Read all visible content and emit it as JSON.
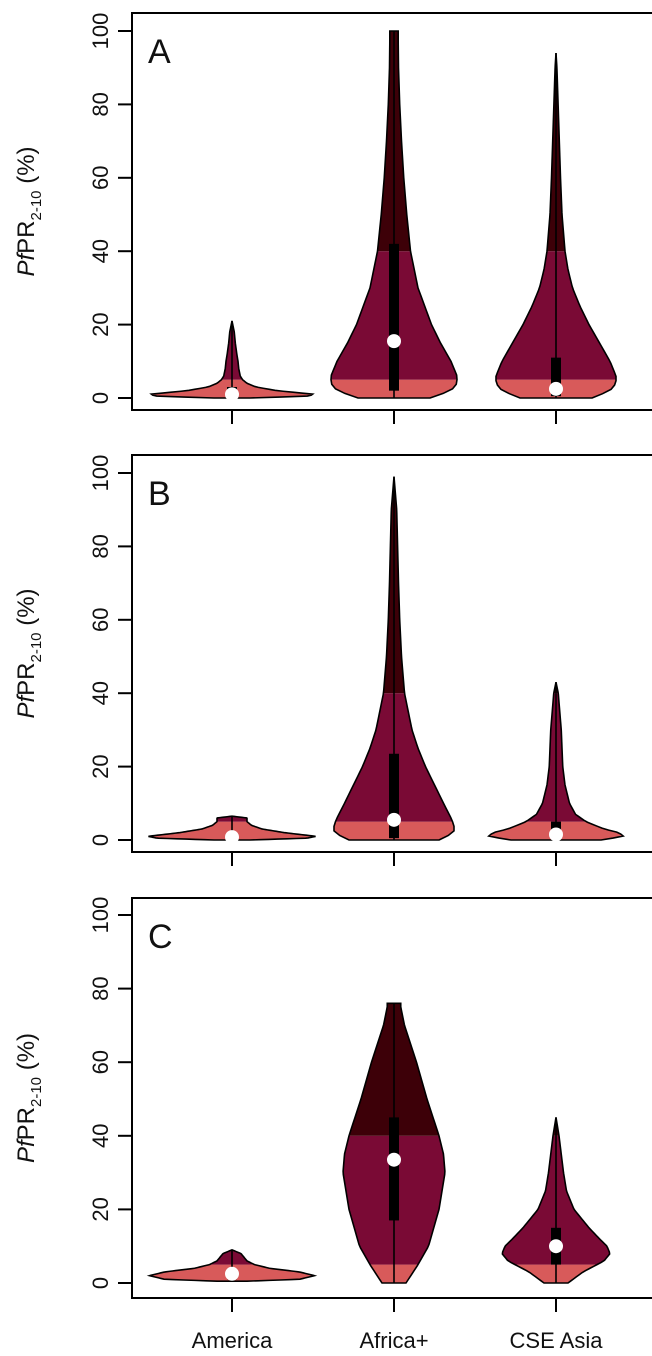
{
  "chart_data": {
    "type": "violin",
    "shared": {
      "categories": [
        "America",
        "Africa+",
        "CSE Asia"
      ],
      "ylabel_prefix": "Pf",
      "ylabel_main": "PR",
      "ylabel_sub": "2-10",
      "ylabel_suffix": " (%)",
      "ylim": [
        0,
        100
      ],
      "yticks": [
        "0",
        "20",
        "40",
        "60",
        "80",
        "100"
      ],
      "band_thresholds": [
        5,
        40
      ],
      "colors": {
        "low_band": "#d85a5a",
        "mid_band": "#7a0a35",
        "high_band": "#3d0008",
        "outline": "#000000",
        "median_dot": "#ffffff"
      }
    },
    "panels": [
      {
        "letter": "A",
        "violins": [
          {
            "category": "America",
            "min": 0,
            "max": 21,
            "q1": 0.3,
            "median": 1,
            "q3": 3,
            "density": [
              [
                0,
                0.12
              ],
              [
                0.5,
                0.5
              ],
              [
                1,
                0.55
              ],
              [
                2,
                0.3
              ],
              [
                3,
                0.16
              ],
              [
                4,
                0.1
              ],
              [
                5,
                0.07
              ],
              [
                6,
                0.055
              ],
              [
                8,
                0.045
              ],
              [
                10,
                0.04
              ],
              [
                12,
                0.032
              ],
              [
                15,
                0.022
              ],
              [
                18,
                0.015
              ],
              [
                21,
                0
              ]
            ]
          },
          {
            "category": "Africa+",
            "min": 0,
            "max": 100,
            "q1": 2,
            "median": 15.5,
            "q3": 42,
            "density": [
              [
                0,
                0.24
              ],
              [
                2,
                0.38
              ],
              [
                4,
                0.42
              ],
              [
                6,
                0.42
              ],
              [
                10,
                0.38
              ],
              [
                15,
                0.31
              ],
              [
                20,
                0.25
              ],
              [
                30,
                0.16
              ],
              [
                40,
                0.11
              ],
              [
                50,
                0.085
              ],
              [
                60,
                0.065
              ],
              [
                70,
                0.05
              ],
              [
                80,
                0.038
              ],
              [
                90,
                0.03
              ],
              [
                97,
                0.028
              ],
              [
                100,
                0.028
              ]
            ]
          },
          {
            "category": "CSE Asia",
            "min": 0,
            "max": 94,
            "q1": 0.5,
            "median": 2.5,
            "q3": 11,
            "density": [
              [
                0,
                0.24
              ],
              [
                2,
                0.36
              ],
              [
                4,
                0.4
              ],
              [
                6,
                0.4
              ],
              [
                10,
                0.36
              ],
              [
                15,
                0.29
              ],
              [
                20,
                0.22
              ],
              [
                25,
                0.16
              ],
              [
                30,
                0.11
              ],
              [
                35,
                0.08
              ],
              [
                40,
                0.06
              ],
              [
                50,
                0.04
              ],
              [
                60,
                0.03
              ],
              [
                70,
                0.022
              ],
              [
                80,
                0.014
              ],
              [
                90,
                0.006
              ],
              [
                94,
                0
              ]
            ]
          }
        ]
      },
      {
        "letter": "B",
        "violins": [
          {
            "category": "America",
            "min": 0,
            "max": 6.5,
            "q1": 0.2,
            "median": 0.8,
            "q3": 2,
            "density": [
              [
                0,
                0.12
              ],
              [
                0.5,
                0.5
              ],
              [
                1,
                0.56
              ],
              [
                2,
                0.35
              ],
              [
                3,
                0.2
              ],
              [
                4,
                0.13
              ],
              [
                5,
                0.1
              ],
              [
                6,
                0.1
              ],
              [
                6.5,
                0
              ]
            ]
          },
          {
            "category": "Africa+",
            "min": 0,
            "max": 99,
            "q1": 0.5,
            "median": 5.5,
            "q3": 23.5,
            "density": [
              [
                0,
                0.3
              ],
              [
                2,
                0.4
              ],
              [
                4,
                0.4
              ],
              [
                6,
                0.38
              ],
              [
                10,
                0.33
              ],
              [
                15,
                0.27
              ],
              [
                20,
                0.21
              ],
              [
                25,
                0.16
              ],
              [
                30,
                0.12
              ],
              [
                40,
                0.07
              ],
              [
                50,
                0.05
              ],
              [
                60,
                0.038
              ],
              [
                70,
                0.03
              ],
              [
                80,
                0.024
              ],
              [
                90,
                0.018
              ],
              [
                99,
                0
              ]
            ]
          },
          {
            "category": "CSE Asia",
            "min": 0,
            "max": 43,
            "q1": 0.5,
            "median": 1.5,
            "q3": 5,
            "density": [
              [
                0,
                0.3
              ],
              [
                1,
                0.45
              ],
              [
                2,
                0.42
              ],
              [
                3,
                0.32
              ],
              [
                5,
                0.2
              ],
              [
                7,
                0.13
              ],
              [
                10,
                0.09
              ],
              [
                15,
                0.06
              ],
              [
                20,
                0.045
              ],
              [
                25,
                0.04
              ],
              [
                30,
                0.035
              ],
              [
                35,
                0.025
              ],
              [
                40,
                0.015
              ],
              [
                43,
                0
              ]
            ]
          }
        ]
      },
      {
        "letter": "C",
        "violins": [
          {
            "category": "America",
            "min": 0.5,
            "max": 9,
            "q1": 1,
            "median": 2.5,
            "q3": 3.5,
            "density": [
              [
                0.5,
                0.1
              ],
              [
                1,
                0.45
              ],
              [
                2,
                0.55
              ],
              [
                3,
                0.45
              ],
              [
                4,
                0.25
              ],
              [
                5,
                0.15
              ],
              [
                6,
                0.1
              ],
              [
                7,
                0.08
              ],
              [
                8,
                0.06
              ],
              [
                9,
                0
              ]
            ]
          },
          {
            "category": "Africa+",
            "min": 0,
            "max": 76,
            "q1": 17,
            "median": 33.5,
            "q3": 45,
            "density": [
              [
                0,
                0.08
              ],
              [
                5,
                0.16
              ],
              [
                10,
                0.23
              ],
              [
                20,
                0.3
              ],
              [
                30,
                0.34
              ],
              [
                35,
                0.33
              ],
              [
                40,
                0.3
              ],
              [
                50,
                0.22
              ],
              [
                60,
                0.15
              ],
              [
                70,
                0.07
              ],
              [
                75,
                0.045
              ],
              [
                76,
                0.045
              ]
            ]
          },
          {
            "category": "CSE Asia",
            "min": 0,
            "max": 45,
            "q1": 5,
            "median": 10,
            "q3": 15,
            "density": [
              [
                0,
                0.08
              ],
              [
                3,
                0.18
              ],
              [
                6,
                0.32
              ],
              [
                8,
                0.36
              ],
              [
                10,
                0.34
              ],
              [
                12,
                0.29
              ],
              [
                15,
                0.22
              ],
              [
                20,
                0.12
              ],
              [
                25,
                0.07
              ],
              [
                30,
                0.05
              ],
              [
                35,
                0.035
              ],
              [
                40,
                0.02
              ],
              [
                45,
                0
              ]
            ]
          }
        ]
      }
    ]
  }
}
